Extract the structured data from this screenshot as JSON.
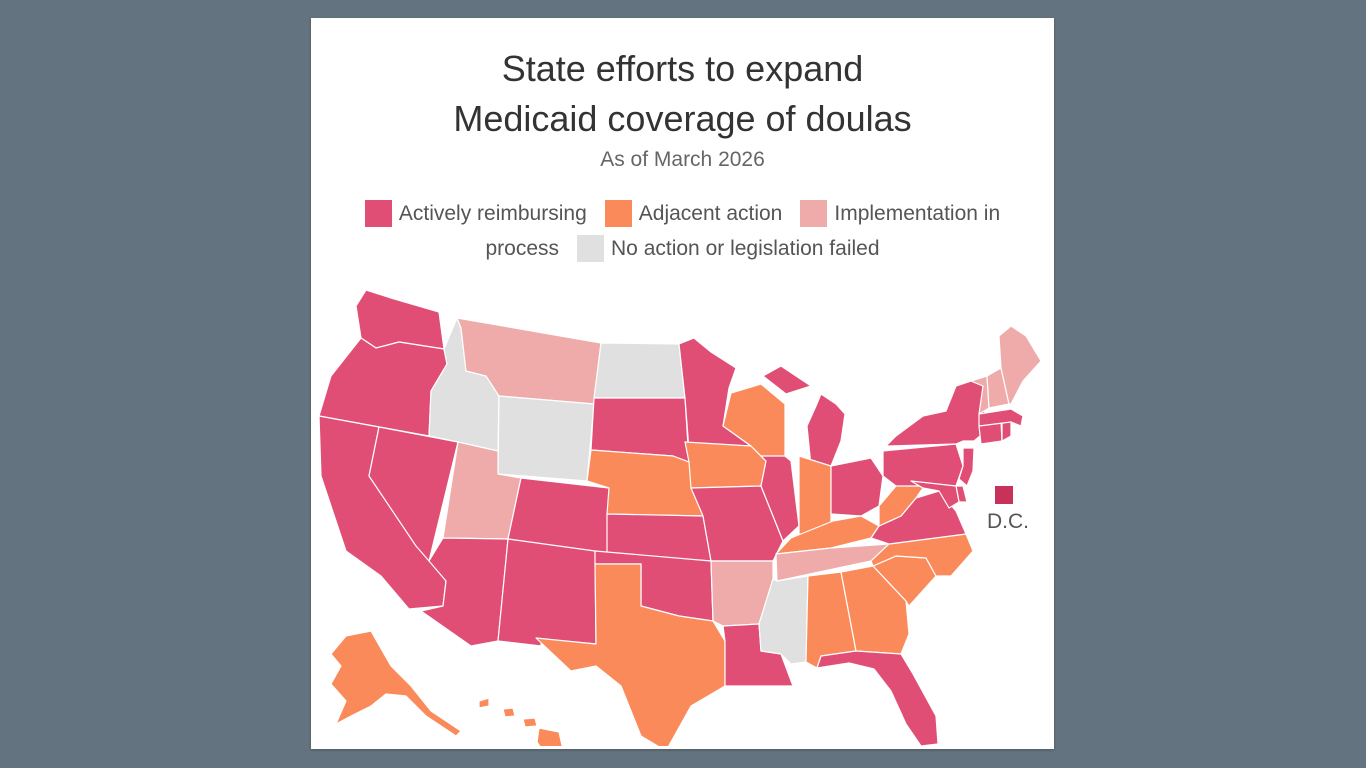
{
  "title_line1": "State efforts to expand",
  "title_line2": "Medicaid coverage of doulas",
  "subtitle": "As of March 2026",
  "legend": {
    "reimbursing": "Actively reimbursing",
    "adjacent": "Adjacent action",
    "implementation": "Implementation in",
    "implementation_cont": "process",
    "none": "No action or legislation failed"
  },
  "dc_label": "D.C.",
  "colors": {
    "reimbursing": "#e04e76",
    "adjacent": "#fb8a5a",
    "implementation": "#efaaaa",
    "none": "#dfe0df",
    "dc": "#c8325a",
    "background": "#637480"
  },
  "states": {
    "WA": "reimbursing",
    "OR": "reimbursing",
    "CA": "reimbursing",
    "NV": "reimbursing",
    "ID": "none",
    "MT": "implementation",
    "WY": "none",
    "UT": "implementation",
    "AZ": "reimbursing",
    "CO": "reimbursing",
    "NM": "reimbursing",
    "ND": "none",
    "SD": "reimbursing",
    "NE": "adjacent",
    "KS": "reimbursing",
    "OK": "reimbursing",
    "TX": "adjacent",
    "MN": "reimbursing",
    "IA": "adjacent",
    "MO": "reimbursing",
    "AR": "implementation",
    "LA": "reimbursing",
    "WI": "adjacent",
    "IL": "reimbursing",
    "MS": "none",
    "MI": "reimbursing",
    "IN": "adjacent",
    "OH": "reimbursing",
    "KY": "adjacent",
    "TN": "implementation",
    "AL": "adjacent",
    "GA": "adjacent",
    "FL": "reimbursing",
    "SC": "adjacent",
    "NC": "adjacent",
    "VA": "reimbursing",
    "WV": "adjacent",
    "PA": "reimbursing",
    "NY": "reimbursing",
    "NJ": "reimbursing",
    "DE": "reimbursing",
    "MD": "reimbursing",
    "CT": "reimbursing",
    "RI": "reimbursing",
    "MA": "reimbursing",
    "VT": "implementation",
    "NH": "implementation",
    "ME": "implementation",
    "AK": "adjacent",
    "HI": "adjacent",
    "DC": "dc"
  }
}
